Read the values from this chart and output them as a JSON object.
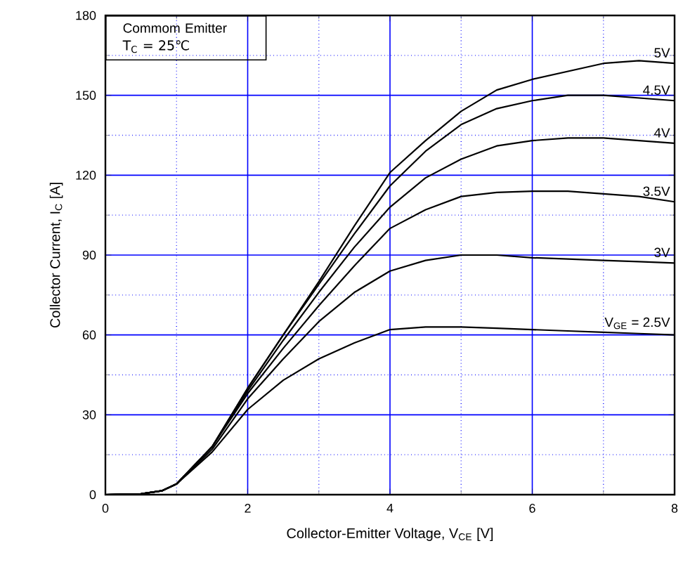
{
  "chart_data": {
    "type": "line",
    "xlabel": "Collector-Emitter Voltage, V$_{CE}$ [V]",
    "ylabel": "Collector Current,  I$_{C}$ [A]",
    "annotations": [
      "Commom Emitter",
      "T$_{C}$ = 25℃"
    ],
    "xlim": [
      0,
      8
    ],
    "ylim": [
      0,
      180
    ],
    "xticks": [
      0,
      {
        "value": 1,
        "label": null
      },
      2,
      {
        "value": 3,
        "label": null
      },
      4,
      {
        "value": 5,
        "label": null
      },
      6,
      {
        "value": 7,
        "label": null
      },
      8
    ],
    "yticks": [
      0,
      {
        "value": 15,
        "label": null
      },
      30,
      {
        "value": 45,
        "label": null
      },
      60,
      {
        "value": 75,
        "label": null
      },
      90,
      {
        "value": 105,
        "label": null
      },
      120,
      {
        "value": 135,
        "label": null
      },
      150,
      {
        "value": 165,
        "label": null
      },
      180
    ],
    "grid": true,
    "legend": "right",
    "marker": "none",
    "line_style": "solid",
    "x": [
      0,
      0.5,
      0.8,
      1,
      1.5,
      2,
      2.5,
      3,
      3.5,
      4,
      4.5,
      5,
      5.5,
      6,
      6.5,
      7,
      7.5,
      8
    ],
    "series": [
      {
        "name": "5V",
        "color": "#000000",
        "values": [
          0,
          0.3,
          1.5,
          4,
          18,
          40,
          60,
          80,
          101,
          121,
          133,
          144,
          152,
          156,
          159,
          162,
          163,
          162
        ]
      },
      {
        "name": "4.5V",
        "color": "#000000",
        "values": [
          0,
          0.3,
          1.5,
          4,
          18,
          40,
          60,
          79,
          98,
          116,
          129,
          139,
          145,
          148,
          150,
          150,
          149,
          148
        ]
      },
      {
        "name": "4V",
        "color": "#000000",
        "values": [
          0,
          0.3,
          1.5,
          4,
          18,
          39,
          58,
          76,
          93,
          108,
          119,
          126,
          131,
          133,
          134,
          134,
          133,
          132
        ]
      },
      {
        "name": "3.5V",
        "color": "#000000",
        "values": [
          0,
          0.3,
          1.5,
          4,
          18,
          38,
          55,
          71,
          86,
          100,
          107,
          112,
          113.5,
          114,
          114,
          113,
          112,
          110
        ]
      },
      {
        "name": "3V",
        "color": "#000000",
        "values": [
          0,
          0.3,
          1.5,
          4,
          17,
          36,
          51,
          65,
          76,
          84,
          88,
          90,
          90,
          89,
          88.5,
          88,
          87.5,
          87
        ]
      },
      {
        "name": "V$_{GE}$ = 2.5V",
        "color": "#000000",
        "values": [
          0,
          0.3,
          1.5,
          4,
          16,
          32,
          43,
          51,
          57,
          62,
          63,
          63,
          62.5,
          62,
          61.5,
          61,
          60.5,
          60
        ]
      }
    ]
  }
}
